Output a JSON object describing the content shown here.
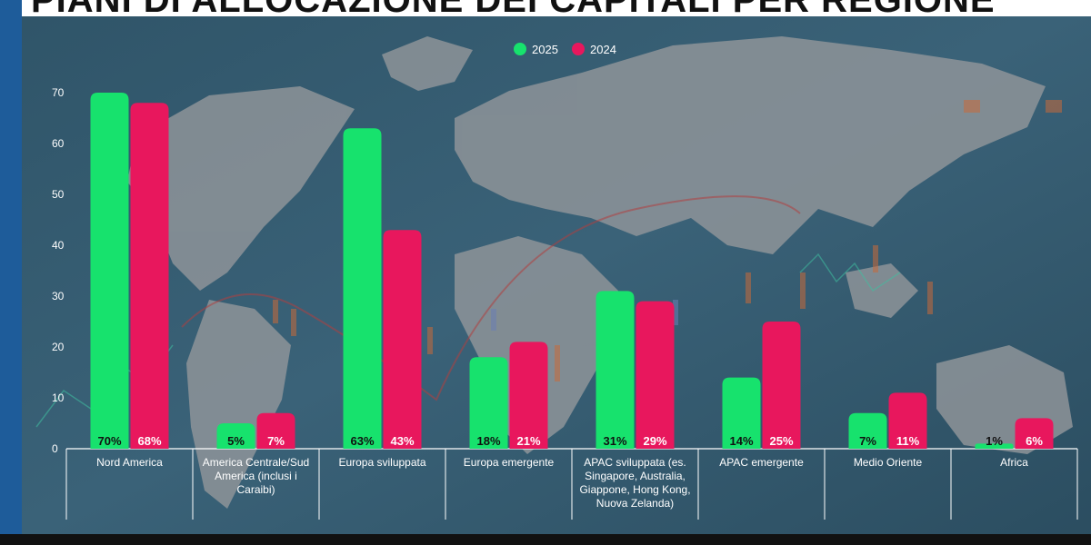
{
  "title": "PIANI DI ALLOCAZIONE DEI CAPITALI PER REGIONE",
  "colors": {
    "series_2025": "#17e26d",
    "series_2024": "#e8175d",
    "background": "#34586e",
    "accent_strip": "#1e5c9a"
  },
  "chart_data": {
    "type": "bar",
    "title": "PIANI DI ALLOCAZIONE DEI CAPITALI PER REGIONE",
    "xlabel": "",
    "ylabel": "",
    "ylim": [
      0,
      70
    ],
    "yticks": [
      "0",
      "10",
      "20",
      "30",
      "40",
      "50",
      "60",
      "70"
    ],
    "grid": false,
    "legend_position": "top-center",
    "categories": [
      "Nord America",
      "America Centrale/Sud America (inclusi i Caraibi)",
      "Europa sviluppata",
      "Europa emergente",
      "APAC sviluppata (es. Singapore, Australia, Giappone, Hong Kong, Nuova Zelanda)",
      "APAC emergente",
      "Medio Oriente",
      "Africa"
    ],
    "category_lines": [
      [
        "Nord America"
      ],
      [
        "America Centrale/Sud",
        "America (inclusi i",
        "Caraibi)"
      ],
      [
        "Europa sviluppata"
      ],
      [
        "Europa emergente"
      ],
      [
        "APAC sviluppata (es.",
        "Singapore, Australia,",
        "Giappone, Hong Kong,",
        "Nuova Zelanda)"
      ],
      [
        "APAC emergente"
      ],
      [
        "Medio Oriente"
      ],
      [
        "Africa"
      ]
    ],
    "series": [
      {
        "name": "2025",
        "values": [
          70,
          5,
          63,
          18,
          31,
          14,
          7,
          1
        ],
        "labels": [
          "70%",
          "5%",
          "63%",
          "18%",
          "31%",
          "14%",
          "7%",
          "1%"
        ]
      },
      {
        "name": "2024",
        "values": [
          68,
          7,
          43,
          21,
          29,
          25,
          11,
          6
        ],
        "labels": [
          "68%",
          "7%",
          "43%",
          "21%",
          "29%",
          "25%",
          "11%",
          "6%"
        ]
      }
    ]
  }
}
